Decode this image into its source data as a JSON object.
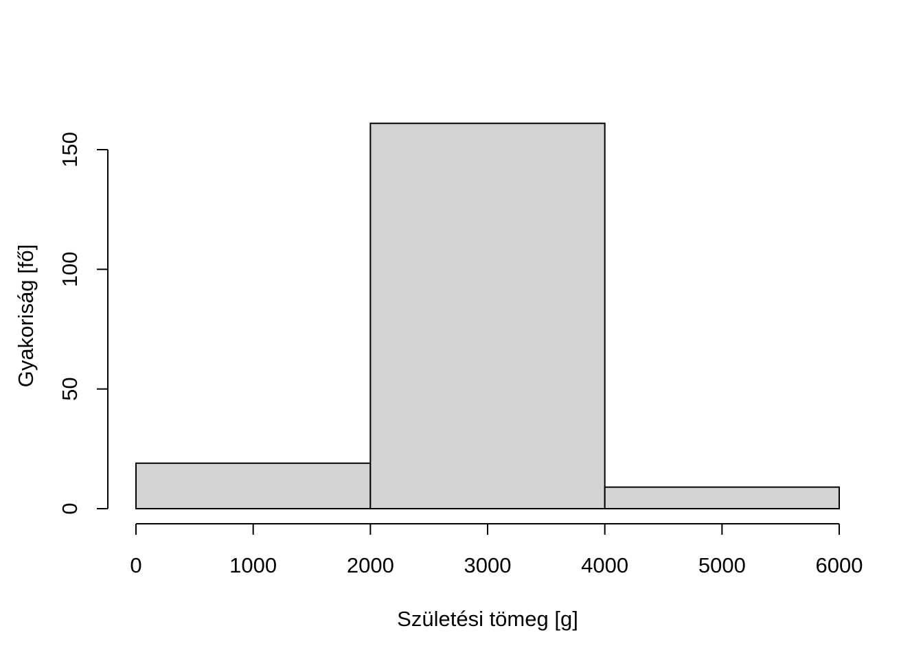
{
  "chart_data": {
    "type": "bar",
    "subtype": "histogram",
    "title": "",
    "xlabel": "Születési tömeg [g]",
    "ylabel": "Gyakoriság [fő]",
    "bins": [
      {
        "x0": 0,
        "x1": 2000,
        "value": 19
      },
      {
        "x0": 2000,
        "x1": 4000,
        "value": 161
      },
      {
        "x0": 4000,
        "x1": 6000,
        "value": 9
      }
    ],
    "x_ticks": [
      0,
      1000,
      2000,
      3000,
      4000,
      5000,
      6000
    ],
    "y_ticks": [
      0,
      50,
      100,
      150
    ],
    "xlim": [
      0,
      6000
    ],
    "ylim": [
      0,
      161
    ],
    "grid": false,
    "legend": "none",
    "colors": {
      "bar_fill": "#d3d3d3",
      "bar_stroke": "#000000",
      "axis": "#000000",
      "background": "#ffffff"
    }
  }
}
